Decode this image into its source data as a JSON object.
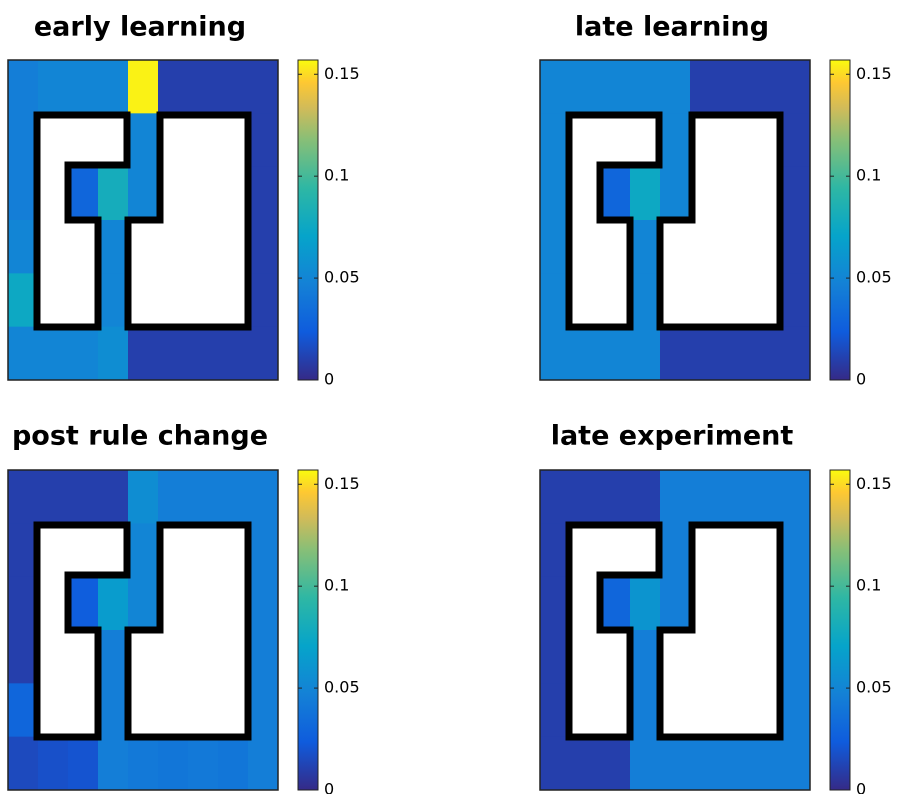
{
  "chart_data": [
    {
      "type": "heatmap",
      "title": "early learning",
      "values": [
        [
          0.045,
          0.05,
          0.05,
          0.05,
          0.155,
          0.01,
          0.01,
          0.01,
          0.01
        ],
        [
          0.045,
          null,
          null,
          0.05,
          0.05,
          null,
          null,
          null,
          0.01
        ],
        [
          0.045,
          null,
          0.03,
          0.08,
          0.05,
          null,
          null,
          null,
          0.01
        ],
        [
          0.05,
          null,
          null,
          0.05,
          null,
          null,
          null,
          null,
          0.01
        ],
        [
          0.075,
          null,
          null,
          0.05,
          null,
          null,
          null,
          null,
          0.01
        ],
        [
          0.05,
          0.05,
          0.05,
          0.055,
          0.01,
          0.01,
          0.01,
          0.01,
          0.01
        ]
      ],
      "clim": [
        0,
        0.157
      ],
      "cticks": [
        0,
        0.05,
        0.1,
        0.15
      ]
    },
    {
      "type": "heatmap",
      "title": "late learning",
      "values": [
        [
          0.05,
          0.05,
          0.05,
          0.05,
          0.05,
          0.01,
          0.01,
          0.01,
          0.01
        ],
        [
          0.05,
          null,
          null,
          0.05,
          0.05,
          null,
          null,
          null,
          0.01
        ],
        [
          0.05,
          null,
          0.03,
          0.075,
          0.05,
          null,
          null,
          null,
          0.01
        ],
        [
          0.05,
          null,
          null,
          0.05,
          null,
          null,
          null,
          null,
          0.01
        ],
        [
          0.05,
          null,
          null,
          0.05,
          null,
          null,
          null,
          null,
          0.01
        ],
        [
          0.05,
          0.05,
          0.05,
          0.05,
          0.01,
          0.01,
          0.01,
          0.01,
          0.01
        ]
      ],
      "clim": [
        0,
        0.157
      ],
      "cticks": [
        0,
        0.05,
        0.1,
        0.15
      ]
    },
    {
      "type": "heatmap",
      "title": "post rule change",
      "values": [
        [
          0.01,
          0.01,
          0.01,
          0.01,
          0.055,
          0.045,
          0.045,
          0.045,
          0.045
        ],
        [
          0.01,
          null,
          null,
          0.01,
          0.05,
          null,
          null,
          null,
          0.045
        ],
        [
          0.01,
          null,
          0.025,
          0.065,
          0.05,
          null,
          null,
          null,
          0.045
        ],
        [
          0.01,
          null,
          null,
          0.045,
          null,
          null,
          null,
          null,
          0.045
        ],
        [
          0.03,
          null,
          null,
          0.045,
          null,
          null,
          null,
          null,
          0.045
        ],
        [
          0.015,
          0.018,
          0.02,
          0.045,
          0.042,
          0.04,
          0.042,
          0.04,
          0.045
        ]
      ],
      "clim": [
        0,
        0.157
      ],
      "cticks": [
        0,
        0.05,
        0.1,
        0.15
      ]
    },
    {
      "type": "heatmap",
      "title": "late experiment",
      "values": [
        [
          0.01,
          0.01,
          0.01,
          0.01,
          0.045,
          0.045,
          0.045,
          0.045,
          0.045
        ],
        [
          0.01,
          null,
          null,
          0.01,
          0.045,
          null,
          null,
          null,
          0.045
        ],
        [
          0.01,
          null,
          0.03,
          0.06,
          0.045,
          null,
          null,
          null,
          0.045
        ],
        [
          0.01,
          null,
          null,
          0.045,
          null,
          null,
          null,
          null,
          0.045
        ],
        [
          0.01,
          null,
          null,
          0.045,
          null,
          null,
          null,
          null,
          0.045
        ],
        [
          0.01,
          0.01,
          0.01,
          0.045,
          0.045,
          0.045,
          0.045,
          0.045,
          0.045
        ]
      ],
      "clim": [
        0,
        0.157
      ],
      "cticks": [
        0,
        0.05,
        0.1,
        0.15
      ]
    }
  ]
}
